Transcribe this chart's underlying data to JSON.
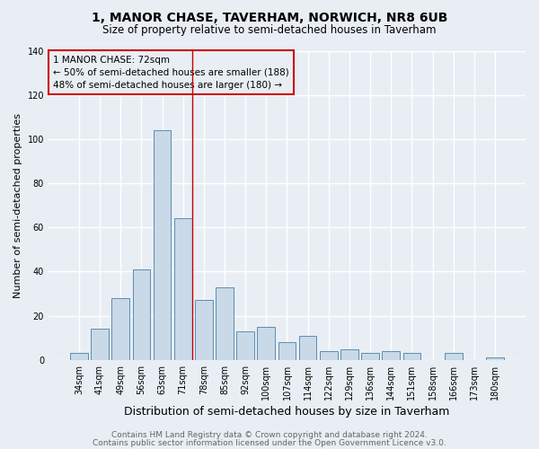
{
  "title1": "1, MANOR CHASE, TAVERHAM, NORWICH, NR8 6UB",
  "title2": "Size of property relative to semi-detached houses in Taverham",
  "xlabel": "Distribution of semi-detached houses by size in Taverham",
  "ylabel": "Number of semi-detached properties",
  "categories": [
    "34sqm",
    "41sqm",
    "49sqm",
    "56sqm",
    "63sqm",
    "71sqm",
    "78sqm",
    "85sqm",
    "92sqm",
    "100sqm",
    "107sqm",
    "114sqm",
    "122sqm",
    "129sqm",
    "136sqm",
    "144sqm",
    "151sqm",
    "158sqm",
    "166sqm",
    "173sqm",
    "180sqm"
  ],
  "values": [
    3,
    14,
    28,
    41,
    104,
    64,
    27,
    33,
    13,
    15,
    8,
    11,
    4,
    5,
    3,
    4,
    3,
    0,
    3,
    0,
    1
  ],
  "bar_color": "#c9d9e8",
  "bar_edge_color": "#5b8db0",
  "bg_color": "#e8eef4",
  "grid_color": "#ffffff",
  "annotation_box_text": [
    "1 MANOR CHASE: 72sqm",
    "← 50% of semi-detached houses are smaller (188)",
    "48% of semi-detached houses are larger (180) →"
  ],
  "ylim": [
    0,
    140
  ],
  "yticks": [
    0,
    20,
    40,
    60,
    80,
    100,
    120,
    140
  ],
  "footer1": "Contains HM Land Registry data © Crown copyright and database right 2024.",
  "footer2": "Contains public sector information licensed under the Open Government Licence v3.0.",
  "title1_fontsize": 10,
  "title2_fontsize": 8.5,
  "xlabel_fontsize": 9,
  "ylabel_fontsize": 8,
  "tick_fontsize": 7,
  "footer_fontsize": 6.5,
  "annotation_fontsize": 7.5
}
